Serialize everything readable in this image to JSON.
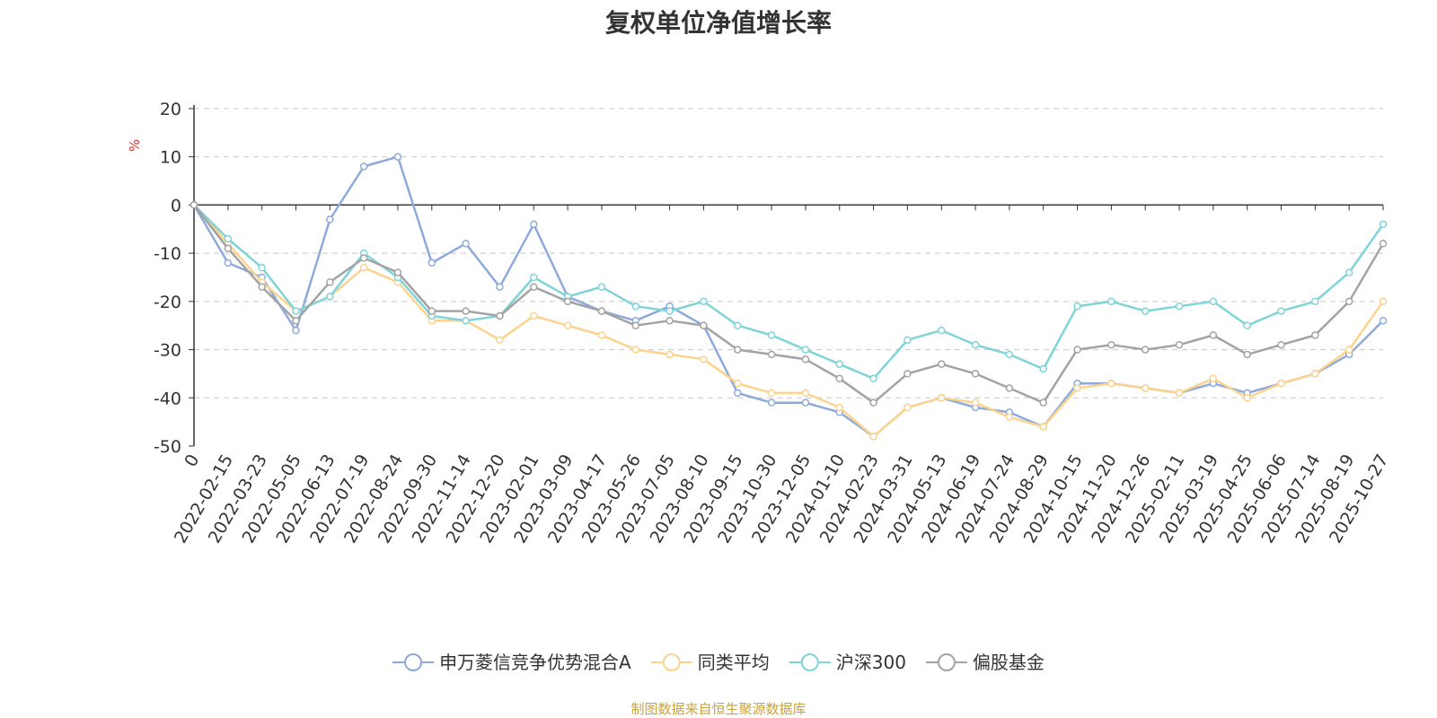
{
  "chart_data": {
    "type": "line",
    "title": "复权单位净值增长率",
    "ylabel": "%",
    "ylim": [
      -50,
      20
    ],
    "yticks": [
      20,
      10,
      0,
      -10,
      -20,
      -30,
      -40,
      -50
    ],
    "xticks": [
      "0",
      "2022-02-15",
      "2022-03-23",
      "2022-05-05",
      "2022-06-13",
      "2022-07-19",
      "2022-08-24",
      "2022-09-30",
      "2022-11-14",
      "2022-12-20",
      "2023-02-01",
      "2023-03-09",
      "2023-04-17",
      "2023-05-26",
      "2023-07-05",
      "2023-08-10",
      "2023-09-15",
      "2023-10-30",
      "2023-12-05",
      "2024-01-10",
      "2024-02-23",
      "2024-03-31",
      "2024-05-13",
      "2024-06-19",
      "2024-07-24",
      "2024-08-29",
      "2024-10-15",
      "2024-11-20",
      "2024-12-26",
      "2025-02-11",
      "2025-03-19",
      "2025-04-25",
      "2025-06-06",
      "2025-07-14",
      "2025-08-19",
      "2025-10-27"
    ],
    "x": [
      "0",
      "2022-02-15",
      "2022-03-23",
      "2022-05-05",
      "2022-06-13",
      "2022-07-19",
      "2022-08-24",
      "2022-09-30",
      "2022-11-14",
      "2022-12-20",
      "2023-02-01",
      "2023-03-09",
      "2023-04-17",
      "2023-05-26",
      "2023-07-05",
      "2023-08-10",
      "2023-09-15",
      "2023-10-30",
      "2023-12-05",
      "2024-01-10",
      "2024-02-23",
      "2024-03-31",
      "2024-05-13",
      "2024-06-19",
      "2024-07-24",
      "2024-08-29",
      "2024-10-15",
      "2024-11-20",
      "2024-12-26",
      "2025-02-11",
      "2025-03-19",
      "2025-04-25",
      "2025-06-06",
      "2025-07-14",
      "2025-08-19",
      "2025-10-27"
    ],
    "grid": true,
    "legend_position": "bottom",
    "series": [
      {
        "name": "申万菱信竞争优势混合A",
        "color": "#8eaadb",
        "values": [
          0,
          -12,
          -15,
          -26,
          -3,
          8,
          10,
          -12,
          -8,
          -17,
          -4,
          -19,
          -22,
          -24,
          -21,
          -25,
          -39,
          -41,
          -41,
          -43,
          -48,
          -42,
          -40,
          -42,
          -43,
          -46,
          -37,
          -37,
          -38,
          -39,
          -37,
          -39,
          -37,
          -35,
          -31,
          -24
        ]
      },
      {
        "name": "同类平均",
        "color": "#fbd38d",
        "values": [
          0,
          -8,
          -16,
          -22,
          -19,
          -13,
          -16,
          -24,
          -24,
          -28,
          -23,
          -25,
          -27,
          -30,
          -31,
          -32,
          -37,
          -39,
          -39,
          -42,
          -48,
          -42,
          -40,
          -41,
          -44,
          -46,
          -38,
          -37,
          -38,
          -39,
          -36,
          -40,
          -37,
          -35,
          -30,
          -20
        ]
      },
      {
        "name": "沪深300",
        "color": "#80d4d8",
        "values": [
          0,
          -7,
          -13,
          -22,
          -19,
          -10,
          -15,
          -23,
          -24,
          -23,
          -15,
          -19,
          -17,
          -21,
          -22,
          -20,
          -25,
          -27,
          -30,
          -33,
          -36,
          -28,
          -26,
          -29,
          -31,
          -34,
          -21,
          -20,
          -22,
          -21,
          -20,
          -25,
          -22,
          -20,
          -14,
          -4
        ]
      },
      {
        "name": "偏股基金",
        "color": "#a3a3a3",
        "values": [
          0,
          -9,
          -17,
          -24,
          -16,
          -11,
          -14,
          -22,
          -22,
          -23,
          -17,
          -20,
          -22,
          -25,
          -24,
          -25,
          -30,
          -31,
          -32,
          -36,
          -41,
          -35,
          -33,
          -35,
          -38,
          -41,
          -30,
          -29,
          -30,
          -29,
          -27,
          -31,
          -29,
          -27,
          -20,
          -8
        ]
      }
    ]
  },
  "source_text": "制图数据来自恒生聚源数据库"
}
